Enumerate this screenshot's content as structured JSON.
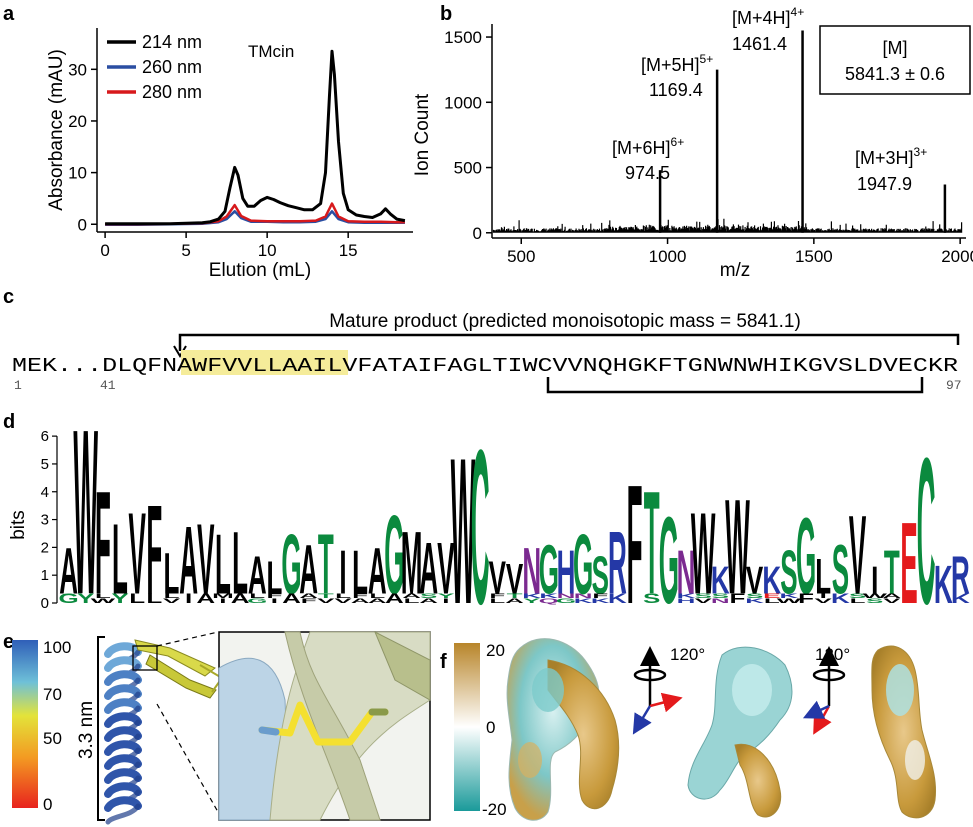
{
  "panels": {
    "a": {
      "label": "a",
      "chart_data": {
        "type": "line",
        "title": "TMcin",
        "xlabel": "Elution (mL)",
        "ylabel": "Absorbance (mAU)",
        "xlim": [
          -0.5,
          19
        ],
        "ylim": [
          -1.5,
          38
        ],
        "xticks": [
          "0",
          "5",
          "10",
          "15"
        ],
        "xtick_values": [
          0,
          5,
          10,
          15
        ],
        "yticks": [
          "0",
          "10",
          "20",
          "30"
        ],
        "ytick_values": [
          0,
          10,
          20,
          30
        ],
        "legend": "top-left",
        "series": [
          {
            "name": "214 nm",
            "color": "#000000",
            "x": [
              0,
              1,
              2,
              3,
              4,
              5,
              6,
              6.5,
              7,
              7.4,
              7.7,
              8.0,
              8.2,
              8.5,
              8.8,
              9.2,
              9.6,
              10.0,
              10.4,
              10.8,
              11.3,
              11.8,
              12.3,
              12.8,
              13.3,
              13.6,
              13.85,
              14.0,
              14.15,
              14.4,
              14.7,
              15.0,
              15.5,
              16.0,
              16.5,
              17.0,
              17.3,
              17.6,
              18.0,
              18.5
            ],
            "y": [
              0.1,
              0.1,
              0.1,
              0.1,
              0.1,
              0.2,
              0.3,
              0.5,
              1.0,
              2.5,
              7.0,
              11.0,
              9.5,
              5.0,
              3.5,
              3.5,
              4.6,
              5.2,
              4.8,
              4.2,
              3.6,
              3.2,
              2.8,
              2.8,
              4.0,
              10.0,
              25.0,
              33.5,
              29.0,
              16.0,
              6.0,
              2.8,
              1.8,
              1.5,
              1.3,
              2.0,
              3.0,
              2.0,
              1.0,
              0.7
            ]
          },
          {
            "name": "260 nm",
            "color": "#2b4ea2",
            "x": [
              0,
              2,
              4,
              6,
              7,
              7.5,
              8.0,
              8.4,
              9.0,
              10,
              11,
              12,
              13,
              13.6,
              14.0,
              14.4,
              15,
              16,
              17,
              18,
              18.5
            ],
            "y": [
              -0.1,
              -0.1,
              0,
              0.1,
              0.4,
              1.0,
              2.5,
              1.2,
              0.5,
              0.5,
              0.4,
              0.4,
              0.5,
              1.0,
              2.5,
              1.0,
              0.4,
              0.3,
              0.3,
              0.3,
              0.3
            ]
          },
          {
            "name": "280 nm",
            "color": "#d7191c",
            "x": [
              0,
              2,
              4,
              6,
              7,
              7.5,
              8.0,
              8.4,
              9.0,
              10,
              11,
              12,
              13,
              13.6,
              14.0,
              14.4,
              15,
              16,
              17,
              18,
              18.5
            ],
            "y": [
              0,
              0,
              0.1,
              0.2,
              0.6,
              1.5,
              3.7,
              1.6,
              0.7,
              0.6,
              0.6,
              0.6,
              0.7,
              1.5,
              4.0,
              1.5,
              0.6,
              0.5,
              0.5,
              0.4,
              0.4
            ]
          }
        ]
      }
    },
    "b": {
      "label": "b",
      "chart_data": {
        "type": "bar",
        "xlabel": "m/z",
        "ylabel": "Ion Count",
        "xlim": [
          400,
          2020
        ],
        "ylim": [
          -40,
          1600
        ],
        "xticks": [
          "500",
          "1000",
          "1500",
          "2000"
        ],
        "xtick_values": [
          500,
          1000,
          1500,
          2000
        ],
        "yticks": [
          "0",
          "500",
          "1000",
          "1500"
        ],
        "ytick_values": [
          0,
          500,
          1000,
          1500
        ],
        "peaks": [
          {
            "mz": 974.5,
            "count": 480,
            "ion": "[M+6H]",
            "charge": "6+",
            "mass_label": "974.5"
          },
          {
            "mz": 1169.4,
            "count": 1250,
            "ion": "[M+5H]",
            "charge": "5+",
            "mass_label": "1169.4"
          },
          {
            "mz": 1461.4,
            "count": 1550,
            "ion": "[M+4H]",
            "charge": "4+",
            "mass_label": "1461.4"
          },
          {
            "mz": 1947.9,
            "count": 370,
            "ion": "[M+3H]",
            "charge": "3+",
            "mass_label": "1947.9"
          }
        ],
        "box_title": "[M]",
        "box_value": "5841.3 ± 0.6"
      }
    },
    "c": {
      "label": "c",
      "title": "Mature product (predicted monoisotopic mass = 5841.1)",
      "seq_prefix": "MEK...DLQFN",
      "seq_highlight": "AWFVVLLAAIL",
      "seq_rest": "VFATAIFAGLTIWCVVNQHGKFTGNWNWHIKGVSLDVECKR",
      "pos_start": "1",
      "pos_mid": "41",
      "pos_end": "97"
    },
    "d": {
      "label": "d",
      "ylabel": "bits",
      "yticks": [
        "0",
        "1",
        "2",
        "3",
        "4",
        "5",
        "6"
      ],
      "ytick_values": [
        0,
        1,
        2,
        3,
        4,
        5,
        6
      ],
      "ymax": 6.4,
      "colors": {
        "hydrophobic": "#000000",
        "polar": "#0b8a3e",
        "basic": "#2438a6",
        "amide": "#7b2a90",
        "acidic": "#e41a1c"
      },
      "columns": [
        {
          "top": "A",
          "h": 1.7,
          "sub": "G"
        },
        {
          "top": "W",
          "h": 6.1,
          "sub": "Y"
        },
        {
          "top": "F",
          "h": 3.8,
          "sub": "WL"
        },
        {
          "top": "L",
          "h": 2.6,
          "sub": "Y"
        },
        {
          "top": "V",
          "h": 3.0,
          "sub": "L"
        },
        {
          "top": "F",
          "h": 3.3,
          "sub": "L"
        },
        {
          "top": "L",
          "h": 1.5,
          "sub": "VL"
        },
        {
          "top": "A",
          "h": 2.5,
          "sub": "I"
        },
        {
          "top": "V",
          "h": 2.6,
          "sub": "A"
        },
        {
          "top": "L",
          "h": 2.2,
          "sub": "IM"
        },
        {
          "top": "L",
          "h": 2.3,
          "sub": "A"
        },
        {
          "top": "A",
          "h": 1.4,
          "sub": "GL"
        },
        {
          "top": "L",
          "h": 1.2,
          "sub": "IF"
        },
        {
          "top": "G",
          "h": 2.2,
          "sub": "A"
        },
        {
          "top": "A",
          "h": 1.8,
          "sub": "FA"
        },
        {
          "top": "T",
          "h": 2.2,
          "sub": "VT"
        },
        {
          "top": "I",
          "h": 1.6,
          "sub": "VL"
        },
        {
          "top": "L",
          "h": 1.6,
          "sub": "AF"
        },
        {
          "top": "A",
          "h": 1.7,
          "sub": "AL"
        },
        {
          "top": "G",
          "h": 2.9,
          "sub": "A"
        },
        {
          "top": "M",
          "h": 2.3,
          "sub": "LA"
        },
        {
          "top": "A",
          "h": 1.9,
          "sub": "AS"
        },
        {
          "top": "V",
          "h": 1.9,
          "sub": "IY"
        },
        {
          "top": "W",
          "h": 5.4,
          "sub": ""
        },
        {
          "top": "C",
          "h": 5.7,
          "sub": ""
        },
        {
          "top": "V",
          "h": 1.2,
          "sub": "LF"
        },
        {
          "top": "V",
          "h": 1.1,
          "sub": "AT"
        },
        {
          "top": "N",
          "h": 1.7,
          "sub": "YK"
        },
        {
          "top": "G",
          "h": 1.8,
          "sub": "QK"
        },
        {
          "top": "H",
          "h": 1.6,
          "sub": "GN"
        },
        {
          "top": "G",
          "h": 2.2,
          "sub": "KN"
        },
        {
          "top": "S",
          "h": 1.4,
          "sub": "KF"
        },
        {
          "top": "R",
          "h": 2.3,
          "sub": "K"
        },
        {
          "top": "F",
          "h": 4.4,
          "sub": ""
        },
        {
          "top": "T",
          "h": 3.8,
          "sub": "S"
        },
        {
          "top": "G",
          "h": 3.2,
          "sub": ""
        },
        {
          "top": "N",
          "h": 1.6,
          "sub": "HK"
        },
        {
          "top": "W",
          "h": 3.0,
          "sub": "VS"
        },
        {
          "top": "K",
          "h": 1.0,
          "sub": "NS"
        },
        {
          "top": "W",
          "h": 3.5,
          "sub": "F"
        },
        {
          "top": "V",
          "h": 1.0,
          "sub": "KS"
        },
        {
          "top": "K",
          "h": 1.0,
          "sub": "LE"
        },
        {
          "top": "S",
          "h": 1.6,
          "sub": "WK"
        },
        {
          "top": "G",
          "h": 2.8,
          "sub": "F"
        },
        {
          "top": "L",
          "h": 1.3,
          "sub": "VI"
        },
        {
          "top": "S",
          "h": 1.8,
          "sub": "K"
        },
        {
          "top": "V",
          "h": 2.9,
          "sub": "LS"
        },
        {
          "top": "I",
          "h": 1.0,
          "sub": "SW"
        },
        {
          "top": "T",
          "h": 1.6,
          "sub": "VA"
        },
        {
          "top": "E",
          "h": 3.0,
          "sub": ""
        },
        {
          "top": "C",
          "h": 5.4,
          "sub": ""
        },
        {
          "top": "K",
          "h": 1.4,
          "sub": ""
        },
        {
          "top": "R",
          "h": 1.4,
          "sub": "K"
        }
      ]
    },
    "e": {
      "label": "e",
      "colorbar_ticks": [
        "100",
        "70",
        "50",
        "0"
      ],
      "colorbar_values": [
        100,
        70,
        50,
        0
      ],
      "length_label": "3.3 nm"
    },
    "f": {
      "label": "f",
      "colorbar_ticks": [
        "20",
        "0",
        "-20"
      ],
      "colorbar_values": [
        20,
        0,
        -20
      ],
      "rotation_label_1": "120°",
      "rotation_label_2": "120°"
    }
  }
}
